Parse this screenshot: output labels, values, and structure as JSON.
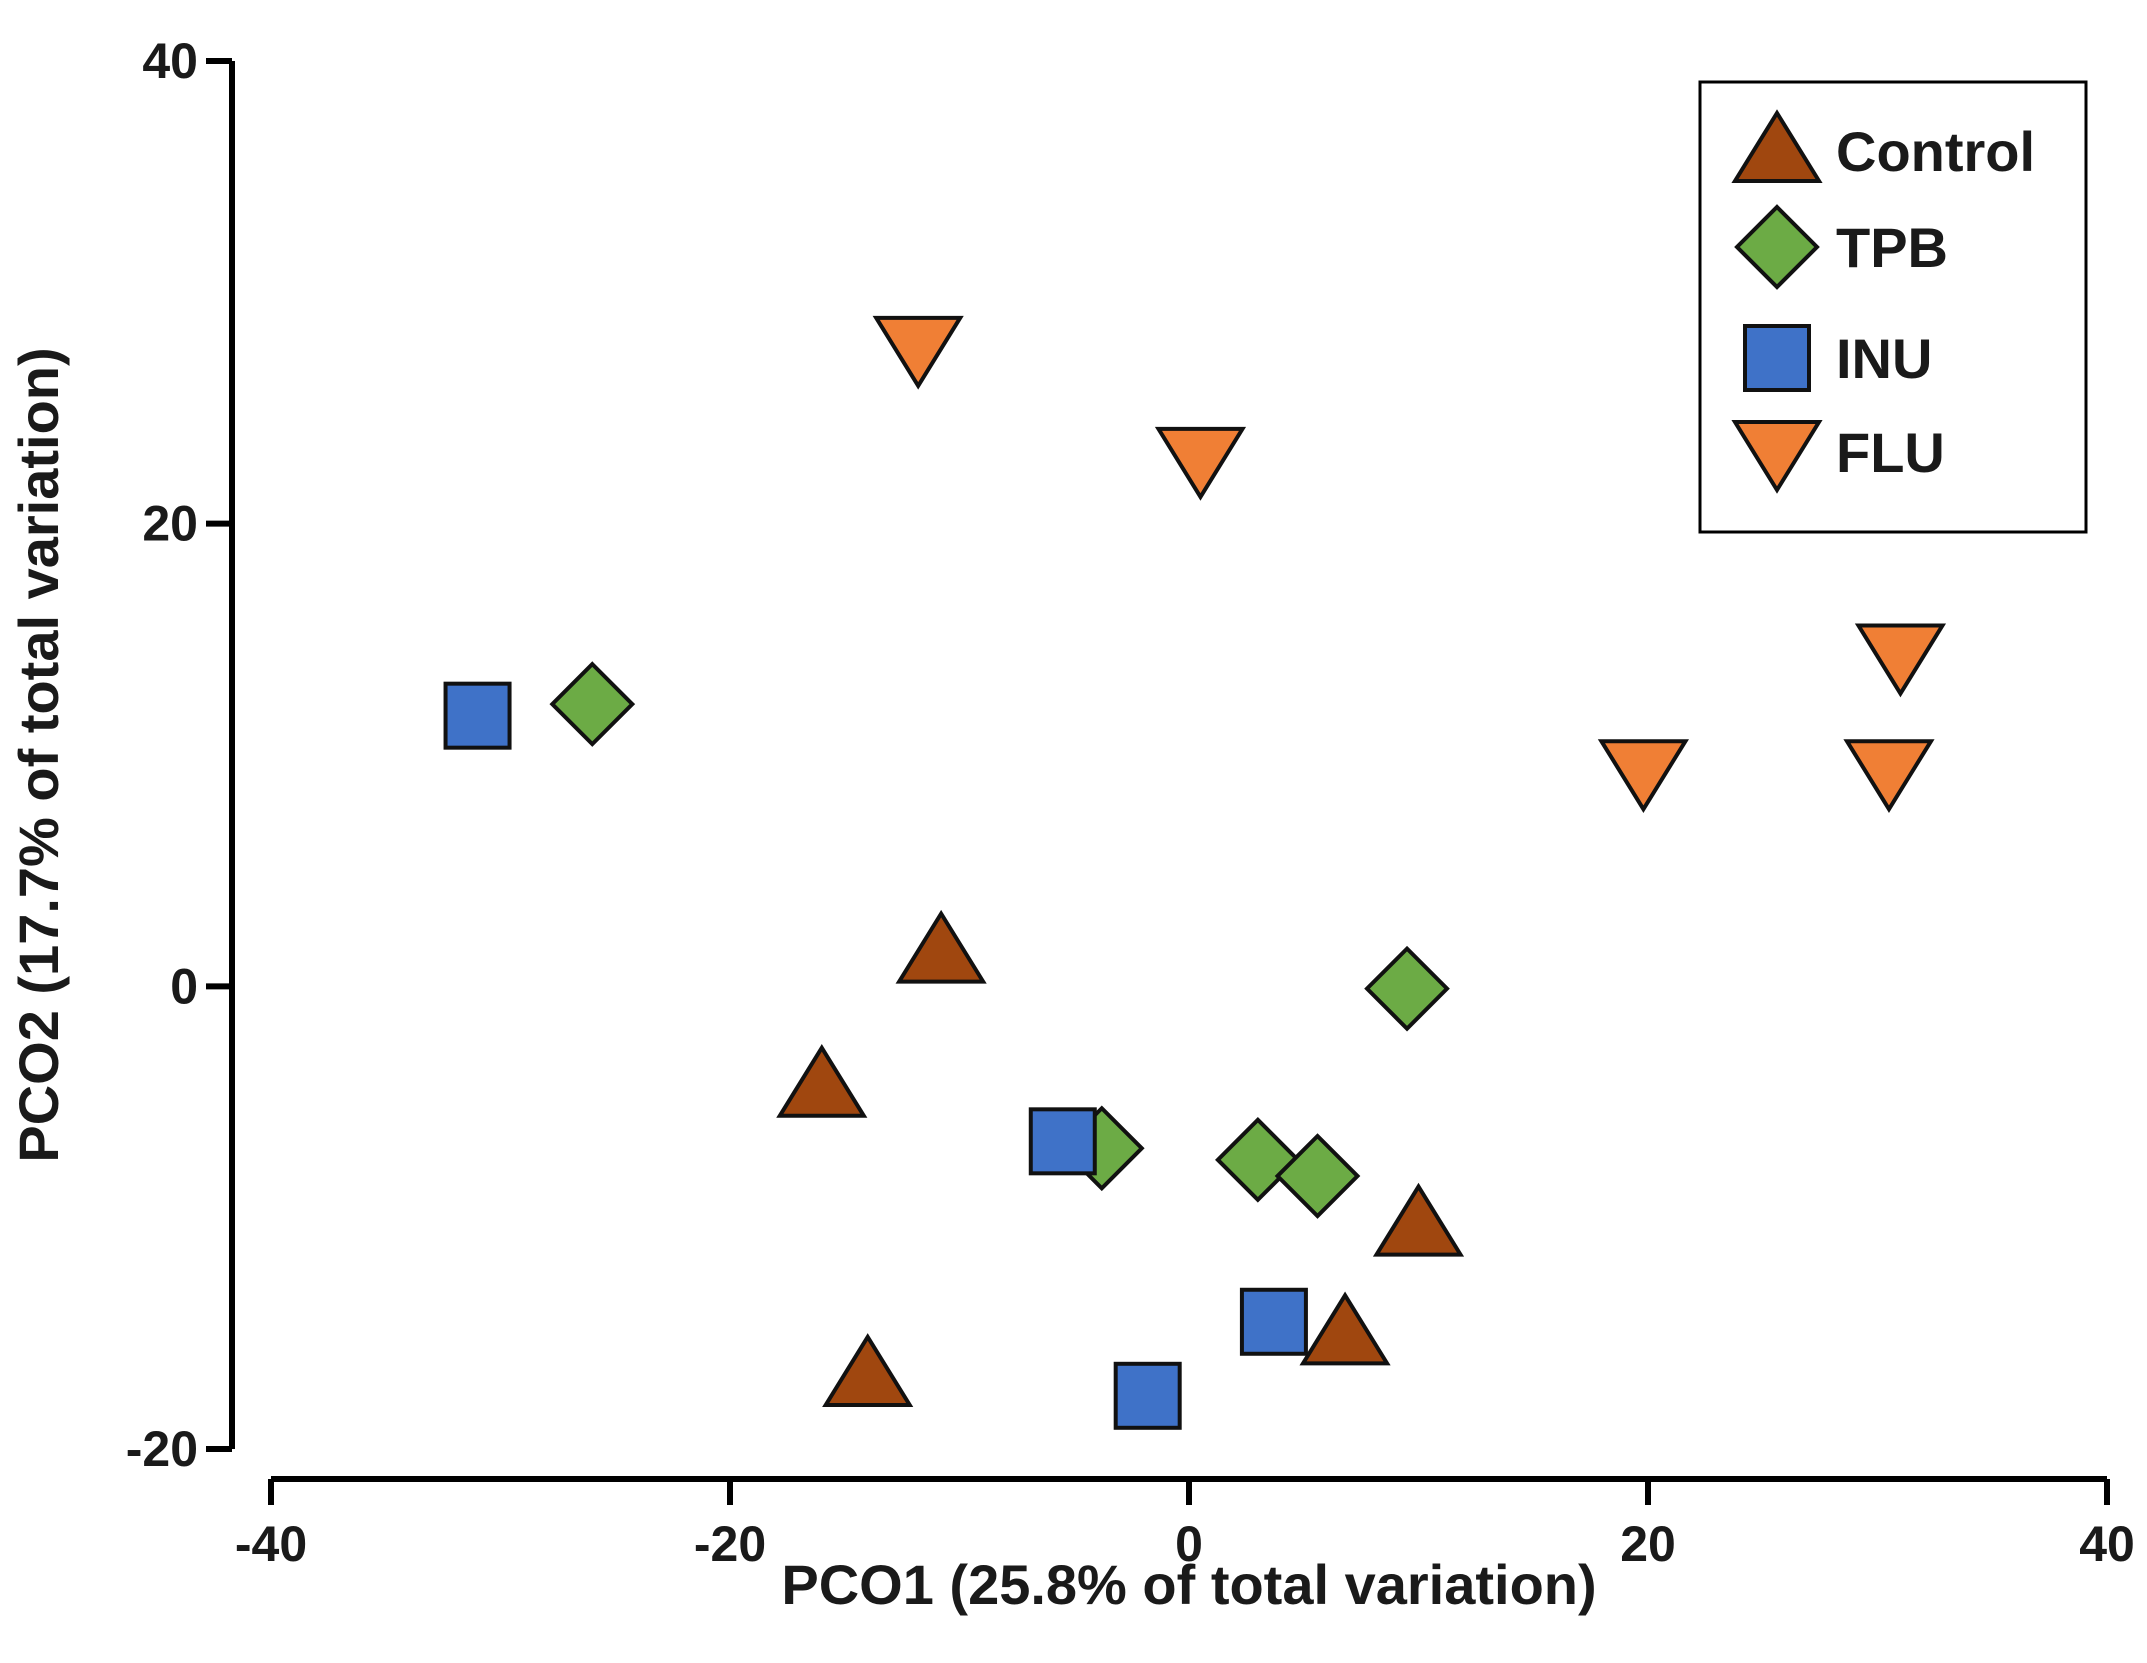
{
  "chart_data": {
    "type": "scatter",
    "title": "",
    "xlabel": "PCO1 (25.8% of total variation)",
    "ylabel": "PCO2 (17.7% of total variation)",
    "xlim": [
      -40,
      40
    ],
    "ylim": [
      -20,
      40
    ],
    "xticks": [
      -40,
      -20,
      0,
      20,
      40
    ],
    "yticks": [
      -20,
      0,
      20,
      40
    ],
    "xtick_labels": [
      "-40",
      "-20",
      "0",
      "20",
      "40"
    ],
    "ytick_labels": [
      "-20",
      "0",
      "20",
      "40"
    ],
    "grid": false,
    "legend_position": "top-right",
    "series": [
      {
        "name": "Control",
        "marker": "triangle-up",
        "color": "#a0470f",
        "points": [
          {
            "x": -10.8,
            "y": 1.5
          },
          {
            "x": -16,
            "y": -4.3
          },
          {
            "x": 10,
            "y": -10.3
          },
          {
            "x": 6.8,
            "y": -15
          },
          {
            "x": -14,
            "y": -16.8
          }
        ]
      },
      {
        "name": "TPB",
        "marker": "diamond",
        "color": "#6cab45",
        "points": [
          {
            "x": -26,
            "y": 12.2
          },
          {
            "x": 9.5,
            "y": -0.1
          },
          {
            "x": -3.8,
            "y": -7
          },
          {
            "x": 3,
            "y": -7.5
          },
          {
            "x": 5.6,
            "y": -8.2
          }
        ]
      },
      {
        "name": "INU",
        "marker": "square",
        "color": "#3f72c8",
        "points": [
          {
            "x": -31,
            "y": 11.7
          },
          {
            "x": -5.5,
            "y": -6.7
          },
          {
            "x": 3.7,
            "y": -14.5
          },
          {
            "x": -1.8,
            "y": -17.7
          }
        ]
      },
      {
        "name": "FLU",
        "marker": "triangle-down",
        "color": "#f07f35",
        "points": [
          {
            "x": -11.8,
            "y": 27.6
          },
          {
            "x": 0.5,
            "y": 22.8
          },
          {
            "x": 31,
            "y": 14.3
          },
          {
            "x": 19.8,
            "y": 9.3
          },
          {
            "x": 30.5,
            "y": 9.3
          }
        ]
      }
    ]
  }
}
